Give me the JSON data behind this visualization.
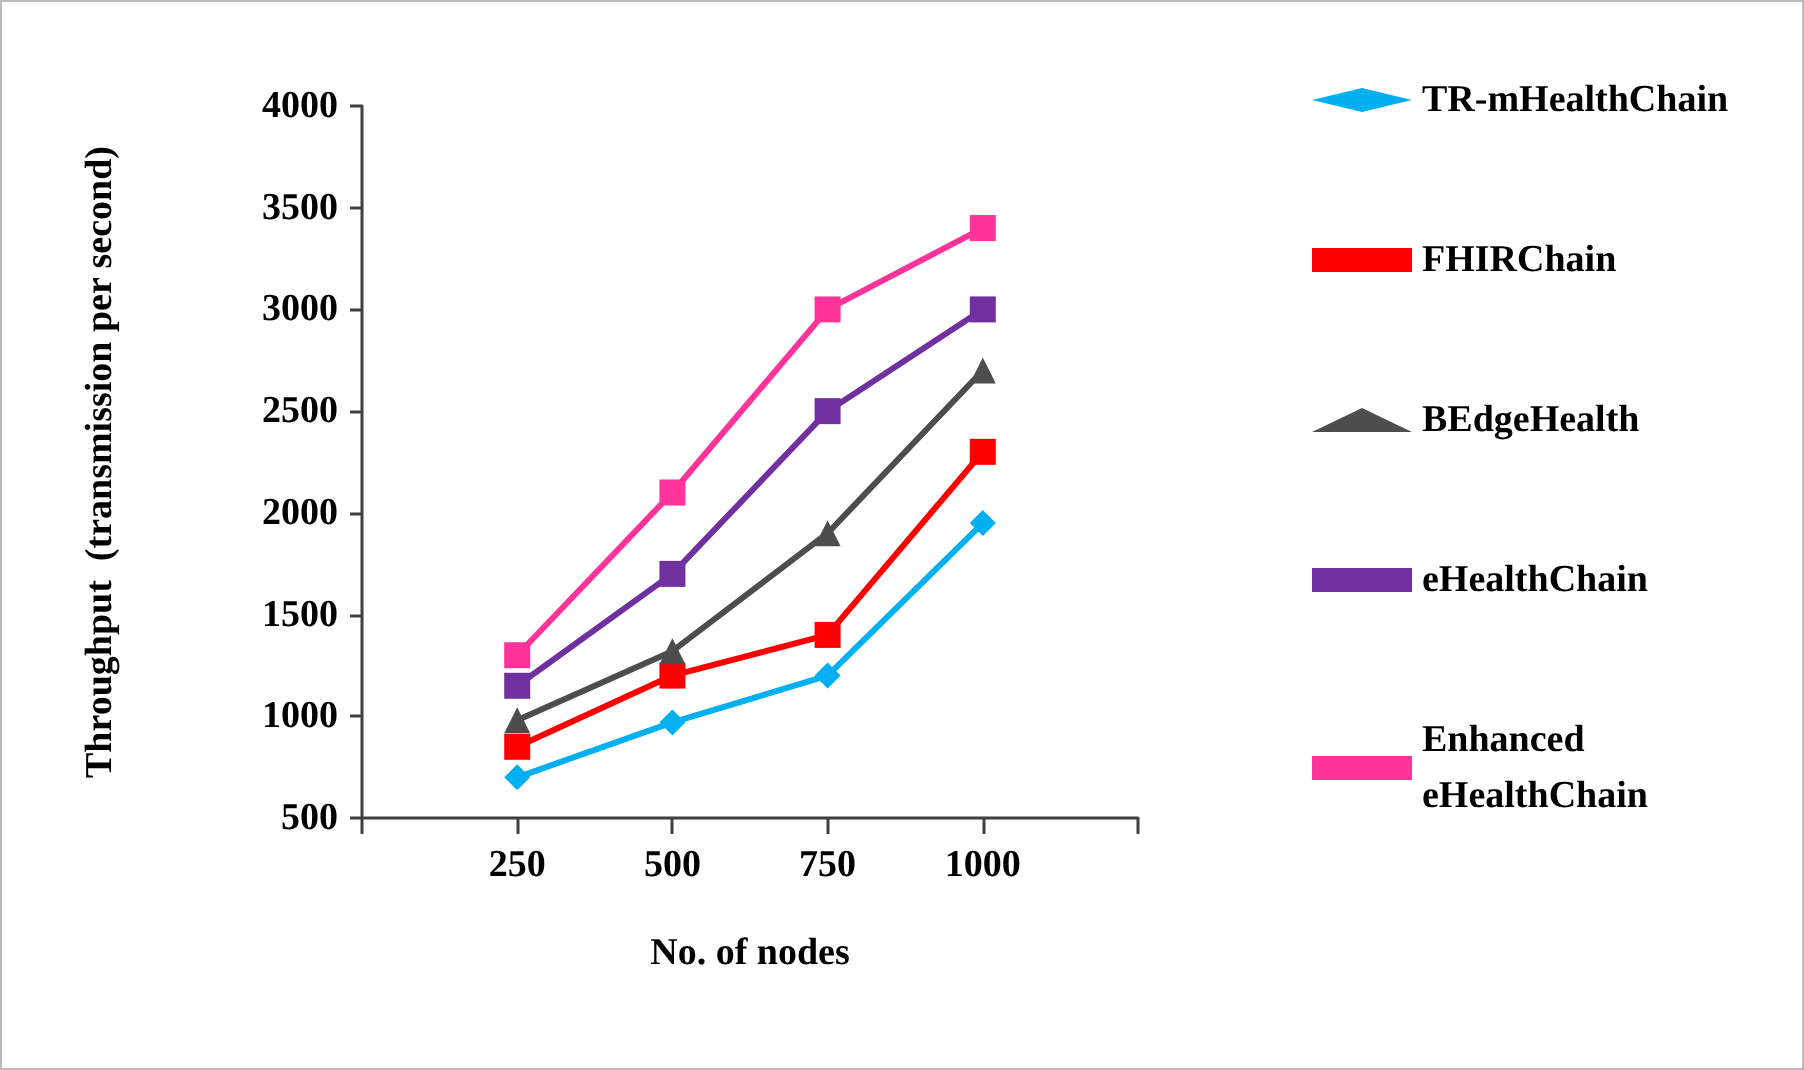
{
  "chart_data": {
    "type": "line",
    "xlabel": "No. of nodes",
    "ylabel": "Throughput  (transmission per second)",
    "x": [
      250,
      500,
      750,
      1000
    ],
    "xlim": [
      0,
      1250
    ],
    "xticks": [
      {
        "value": 0,
        "label": null
      },
      250,
      500,
      750,
      1000,
      {
        "value": 1250,
        "label": null
      }
    ],
    "ylim": [
      500,
      4000
    ],
    "yticks": [
      500,
      1000,
      1500,
      2000,
      2500,
      3000,
      3500,
      4000
    ],
    "grid": false,
    "legend": "right",
    "line_style": "solid",
    "series": [
      {
        "name": "TR-mHealthChain",
        "color": "#00b0f0",
        "marker": "diamond",
        "values": [
          700,
          970,
          1200,
          1950
        ]
      },
      {
        "name": "FHIRChain",
        "color": "#ff0000",
        "marker": "square",
        "values": [
          850,
          1200,
          1400,
          2300
        ]
      },
      {
        "name": "BEdgeHealth",
        "color": "#4d4d4d",
        "marker": "triangle",
        "values": [
          980,
          1320,
          1900,
          2700
        ]
      },
      {
        "name": "eHealthChain",
        "color": "#7030a0",
        "marker": "square",
        "values": [
          1150,
          1700,
          2500,
          3000
        ]
      },
      {
        "name": "Enhanced eHealthChain",
        "color": "#ff3399",
        "marker": "square",
        "values": [
          1300,
          2100,
          3000,
          3400
        ]
      }
    ]
  }
}
